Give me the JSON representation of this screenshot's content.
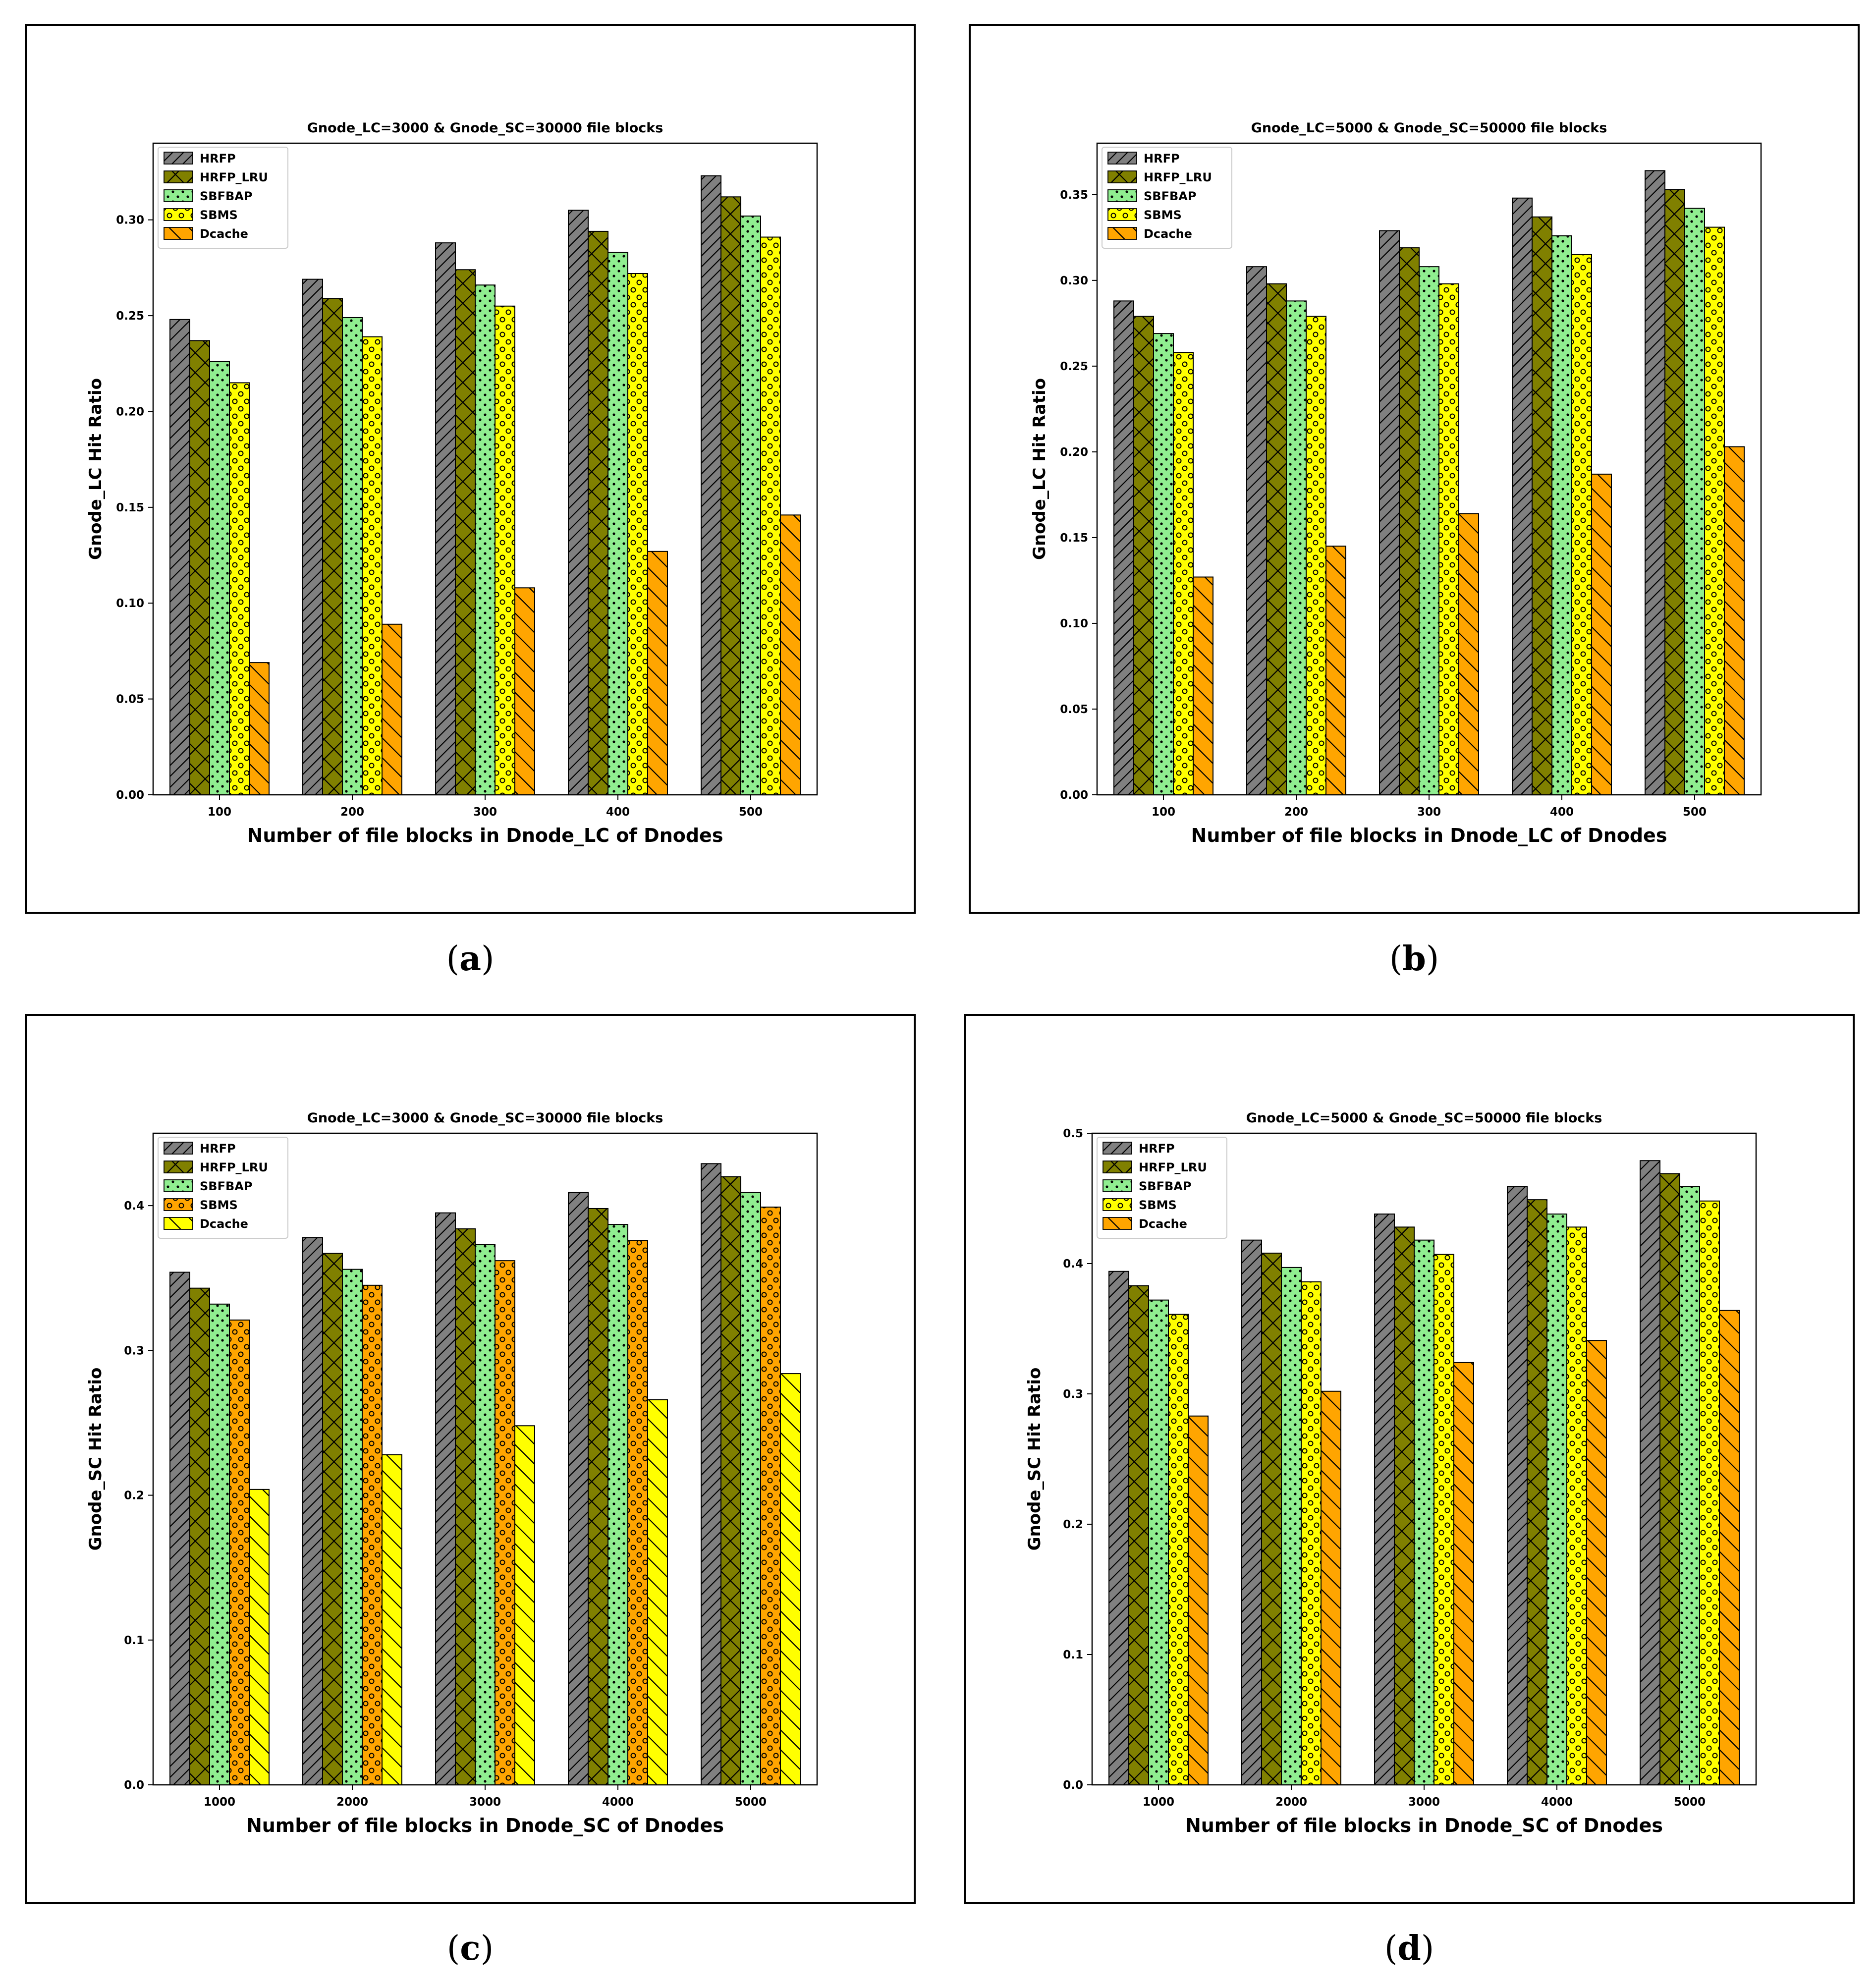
{
  "captions": [
    "a",
    "b",
    "c",
    "d"
  ],
  "colors": {
    "HRFP": "#808080",
    "HRFP_LRU": "#808000",
    "SBFBAP": "#90ee90",
    "SBMS": "#ffff00",
    "Dcache": "#ffa500"
  },
  "chart_data": [
    {
      "type": "bar",
      "title": "Gnode_LC=3000 & Gnode_SC=30000 file blocks",
      "xlabel": "Number of file blocks in Dnode_LC of Dnodes",
      "ylabel": "Gnode_LC Hit Ratio",
      "categories": [
        "100",
        "200",
        "300",
        "400",
        "500"
      ],
      "ylim": [
        0,
        0.34
      ],
      "yticks": [
        0.0,
        0.05,
        0.1,
        0.15,
        0.2,
        0.25,
        0.3
      ],
      "ytick_labels": [
        "0.00",
        "0.05",
        "0.10",
        "0.15",
        "0.20",
        "0.25",
        "0.30"
      ],
      "legend_position": "upper-left",
      "series": [
        {
          "name": "HRFP",
          "color": "#808080",
          "hatch": "slash",
          "values": [
            0.248,
            0.269,
            0.288,
            0.305,
            0.323
          ]
        },
        {
          "name": "HRFP_LRU",
          "color": "#808000",
          "hatch": "cross",
          "values": [
            0.237,
            0.259,
            0.274,
            0.294,
            0.312
          ]
        },
        {
          "name": "SBFBAP",
          "color": "#90ee90",
          "hatch": "dot",
          "values": [
            0.226,
            0.249,
            0.266,
            0.283,
            0.302
          ]
        },
        {
          "name": "SBMS",
          "color": "#ffff00",
          "hatch": "circle",
          "values": [
            0.215,
            0.239,
            0.255,
            0.272,
            0.291
          ]
        },
        {
          "name": "Dcache",
          "color": "#ffa500",
          "hatch": "backslash",
          "values": [
            0.069,
            0.089,
            0.108,
            0.127,
            0.146
          ]
        }
      ]
    },
    {
      "type": "bar",
      "title": "Gnode_LC=5000 & Gnode_SC=50000 file blocks",
      "xlabel": "Number of file blocks in Dnode_LC of Dnodes",
      "ylabel": "Gnode_LC Hit Ratio",
      "categories": [
        "100",
        "200",
        "300",
        "400",
        "500"
      ],
      "ylim": [
        0,
        0.38
      ],
      "yticks": [
        0.0,
        0.05,
        0.1,
        0.15,
        0.2,
        0.25,
        0.3,
        0.35
      ],
      "ytick_labels": [
        "0.00",
        "0.05",
        "0.10",
        "0.15",
        "0.20",
        "0.25",
        "0.30",
        "0.35"
      ],
      "legend_position": "upper-left",
      "series": [
        {
          "name": "HRFP",
          "color": "#808080",
          "hatch": "slash",
          "values": [
            0.288,
            0.308,
            0.329,
            0.348,
            0.364
          ]
        },
        {
          "name": "HRFP_LRU",
          "color": "#808000",
          "hatch": "cross",
          "values": [
            0.279,
            0.298,
            0.319,
            0.337,
            0.353
          ]
        },
        {
          "name": "SBFBAP",
          "color": "#90ee90",
          "hatch": "dot",
          "values": [
            0.269,
            0.288,
            0.308,
            0.326,
            0.342
          ]
        },
        {
          "name": "SBMS",
          "color": "#ffff00",
          "hatch": "circle",
          "values": [
            0.258,
            0.279,
            0.298,
            0.315,
            0.331
          ]
        },
        {
          "name": "Dcache",
          "color": "#ffa500",
          "hatch": "backslash",
          "values": [
            0.127,
            0.145,
            0.164,
            0.187,
            0.203
          ]
        }
      ]
    },
    {
      "type": "bar",
      "title": "Gnode_LC=3000 & Gnode_SC=30000 file blocks",
      "xlabel": "Number of file blocks in Dnode_SC of Dnodes",
      "ylabel": "Gnode_SC Hit Ratio",
      "categories": [
        "1000",
        "2000",
        "3000",
        "4000",
        "5000"
      ],
      "ylim": [
        0,
        0.45
      ],
      "yticks": [
        0.0,
        0.1,
        0.2,
        0.3,
        0.4
      ],
      "ytick_labels": [
        "0.0",
        "0.1",
        "0.2",
        "0.3",
        "0.4"
      ],
      "legend_position": "upper-left",
      "series": [
        {
          "name": "HRFP",
          "color": "#808080",
          "hatch": "slash",
          "values": [
            0.354,
            0.378,
            0.395,
            0.409,
            0.429
          ]
        },
        {
          "name": "HRFP_LRU",
          "color": "#808000",
          "hatch": "cross",
          "values": [
            0.343,
            0.367,
            0.384,
            0.398,
            0.42
          ]
        },
        {
          "name": "SBFBAP",
          "color": "#90ee90",
          "hatch": "dot",
          "values": [
            0.332,
            0.356,
            0.373,
            0.387,
            0.409
          ]
        },
        {
          "name": "SBMS",
          "color": "#ffa500",
          "hatch": "circle",
          "values": [
            0.321,
            0.345,
            0.362,
            0.376,
            0.399
          ]
        },
        {
          "name": "Dcache",
          "color": "#ffff00",
          "hatch": "backslash",
          "values": [
            0.204,
            0.228,
            0.248,
            0.266,
            0.284
          ]
        }
      ]
    },
    {
      "type": "bar",
      "title": "Gnode_LC=5000 & Gnode_SC=50000 file blocks",
      "xlabel": "Number of file blocks in Dnode_SC of Dnodes",
      "ylabel": "Gnode_SC Hit Ratio",
      "categories": [
        "1000",
        "2000",
        "3000",
        "4000",
        "5000"
      ],
      "ylim": [
        0,
        0.5
      ],
      "yticks": [
        0.0,
        0.1,
        0.2,
        0.3,
        0.4,
        0.5
      ],
      "ytick_labels": [
        "0.0",
        "0.1",
        "0.2",
        "0.3",
        "0.4",
        "0.5"
      ],
      "legend_position": "upper-left",
      "series": [
        {
          "name": "HRFP",
          "color": "#808080",
          "hatch": "slash",
          "values": [
            0.394,
            0.418,
            0.438,
            0.459,
            0.479
          ]
        },
        {
          "name": "HRFP_LRU",
          "color": "#808000",
          "hatch": "cross",
          "values": [
            0.383,
            0.408,
            0.428,
            0.449,
            0.469
          ]
        },
        {
          "name": "SBFBAP",
          "color": "#90ee90",
          "hatch": "dot",
          "values": [
            0.372,
            0.397,
            0.418,
            0.438,
            0.459
          ]
        },
        {
          "name": "SBMS",
          "color": "#ffff00",
          "hatch": "circle",
          "values": [
            0.361,
            0.386,
            0.407,
            0.428,
            0.448
          ]
        },
        {
          "name": "Dcache",
          "color": "#ffa500",
          "hatch": "backslash",
          "values": [
            0.283,
            0.302,
            0.324,
            0.341,
            0.364
          ]
        }
      ]
    }
  ]
}
